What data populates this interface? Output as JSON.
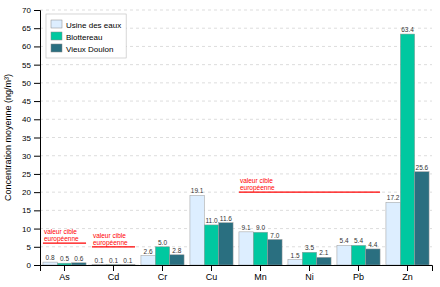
{
  "chart_data": {
    "type": "bar",
    "categories": [
      "As",
      "Cd",
      "Cr",
      "Cu",
      "Mn",
      "Ni",
      "Pb",
      "Zn"
    ],
    "series": [
      {
        "name": "Usine des eaux",
        "color": "#ddeeff",
        "values": [
          0.8,
          0.1,
          2.6,
          19.1,
          9.1,
          1.5,
          5.4,
          17.2
        ],
        "value_labels": [
          "0.8",
          "0.1",
          "2.6",
          "19.1",
          "9.1",
          "1.5",
          "5.4",
          "17.2"
        ]
      },
      {
        "name": "Blottereau",
        "color": "#00c8a0",
        "values": [
          0.5,
          0.1,
          5.0,
          11.0,
          9.0,
          3.5,
          5.4,
          63.4
        ],
        "value_labels": [
          "0.5",
          "0.1",
          "5.0",
          "11.0",
          "9.0",
          "3.5",
          "5.4",
          "63.4"
        ]
      },
      {
        "name": "Vieux Doulon",
        "color": "#2a6f80",
        "values": [
          0.6,
          0.1,
          2.8,
          11.6,
          7.0,
          2.1,
          4.4,
          25.6
        ],
        "value_labels": [
          "0.6",
          "0.1",
          "2.8",
          "11.6",
          "7.0",
          "2.1",
          "4.4",
          "25.6"
        ]
      }
    ],
    "ylim": [
      0,
      70
    ],
    "yticks": [
      0,
      5,
      10,
      15,
      20,
      25,
      30,
      35,
      40,
      45,
      50,
      55,
      60,
      65,
      70
    ],
    "ylabel": "Concentration moyenne (ng/m³)",
    "grid": true,
    "legend": "upper left",
    "data_labels": true,
    "annotations": [
      {
        "text": "valeur cible\neuropéenne",
        "value": 6.0,
        "from": "As",
        "to": "As",
        "color": "red"
      },
      {
        "text": "valeur cible\neuropéenne",
        "value": 5.0,
        "from": "Cd",
        "to": "Cd",
        "color": "red"
      },
      {
        "text": "valeur cible\neuropéenne",
        "value": 20.0,
        "from": "Mn",
        "to": "Pb",
        "color": "red"
      }
    ]
  }
}
